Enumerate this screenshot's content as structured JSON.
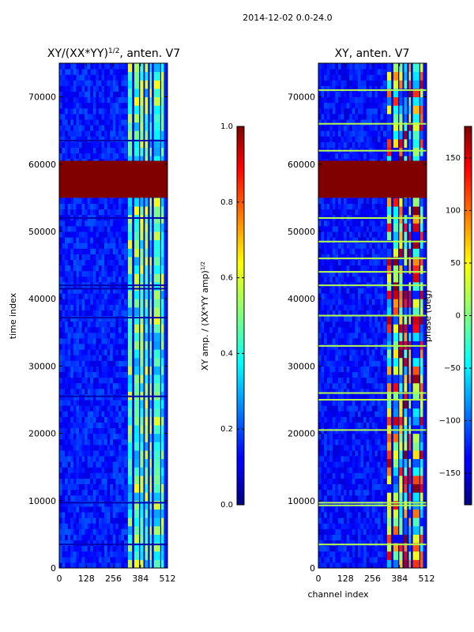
{
  "figure": {
    "suptitle": "2014-12-02 0.0-24.0"
  },
  "chart_data": [
    {
      "type": "heatmap",
      "title": "XY/(XX*YY)",
      "title_sup": "1/2",
      "title_suffix": ", anten. V7",
      "xlabel": "",
      "ylabel": "time index",
      "xlim": [
        0,
        512
      ],
      "ylim": [
        0,
        75000
      ],
      "xticks": [
        {
          "v": 0,
          "label": "0"
        },
        {
          "v": 128,
          "label": "128"
        },
        {
          "v": 256,
          "label": "256"
        },
        {
          "v": 384,
          "label": "384"
        },
        {
          "v": 512,
          "label": "512"
        }
      ],
      "yticks": [
        {
          "v": 0,
          "label": "0"
        },
        {
          "v": 10000,
          "label": "10000"
        },
        {
          "v": 20000,
          "label": "20000"
        },
        {
          "v": 30000,
          "label": "30000"
        },
        {
          "v": 40000,
          "label": "40000"
        },
        {
          "v": 50000,
          "label": "50000"
        },
        {
          "v": 60000,
          "label": "60000"
        },
        {
          "v": 70000,
          "label": "70000"
        }
      ],
      "colormap": "jet",
      "colorbar": {
        "label": "XY amp. / (XX*YY amp)",
        "label_sup": "1/2",
        "range": [
          0.0,
          1.0
        ],
        "ticks": [
          {
            "v": 0.0,
            "label": "0.0"
          },
          {
            "v": 0.2,
            "label": "0.2"
          },
          {
            "v": 0.4,
            "label": "0.4"
          },
          {
            "v": 0.6,
            "label": "0.6"
          },
          {
            "v": 0.8,
            "label": "0.8"
          },
          {
            "v": 1.0,
            "label": "1.0"
          }
        ]
      },
      "background_value": 0.15,
      "band_channels": [
        [
          325,
          345
        ],
        [
          355,
          378
        ],
        [
          382,
          398
        ],
        [
          405,
          420
        ],
        [
          428,
          438
        ],
        [
          447,
          478
        ],
        [
          482,
          495
        ]
      ],
      "band_value": 0.45,
      "flagged_time_range": [
        55000,
        60500
      ],
      "flagged_value": 1.0,
      "blank_rows": [
        3500,
        9700,
        25500,
        37200,
        41500,
        42000,
        52000,
        63500
      ]
    },
    {
      "type": "heatmap",
      "title": "XY, anten. V7",
      "xlabel": "channel index",
      "ylabel": "",
      "xlim": [
        0,
        512
      ],
      "ylim": [
        0,
        75000
      ],
      "xticks": [
        {
          "v": 0,
          "label": "0"
        },
        {
          "v": 128,
          "label": "128"
        },
        {
          "v": 256,
          "label": "256"
        },
        {
          "v": 384,
          "label": "384"
        },
        {
          "v": 512,
          "label": "512"
        }
      ],
      "yticks": [
        {
          "v": 0,
          "label": "0"
        },
        {
          "v": 10000,
          "label": "10000"
        },
        {
          "v": 20000,
          "label": "20000"
        },
        {
          "v": 30000,
          "label": "30000"
        },
        {
          "v": 40000,
          "label": "40000"
        },
        {
          "v": 50000,
          "label": "50000"
        },
        {
          "v": 60000,
          "label": "60000"
        },
        {
          "v": 70000,
          "label": "70000"
        }
      ],
      "colormap": "jet",
      "colorbar": {
        "label": "phase (deg)",
        "range": [
          -180,
          180
        ],
        "ticks": [
          {
            "v": 150,
            "label": "150"
          },
          {
            "v": 100,
            "label": "100"
          },
          {
            "v": 50,
            "label": "50"
          },
          {
            "v": 0,
            "label": "0"
          },
          {
            "v": -50,
            "label": "−50"
          },
          {
            "v": -100,
            "label": "−100"
          },
          {
            "v": -150,
            "label": "−150"
          }
        ]
      },
      "background_value": -130,
      "band_channels": [
        [
          325,
          345
        ],
        [
          355,
          378
        ],
        [
          382,
          398
        ],
        [
          405,
          420
        ],
        [
          428,
          438
        ],
        [
          447,
          478
        ],
        [
          482,
          495
        ]
      ],
      "band_value": 20,
      "flagged_time_range": [
        55000,
        60500
      ],
      "flagged_value": 180,
      "blank_rows": [
        3500,
        9300,
        9700,
        20500,
        25000,
        26000,
        33000,
        37500,
        42000,
        44000,
        46000,
        48500,
        52000,
        62000,
        66000,
        71000
      ]
    }
  ]
}
